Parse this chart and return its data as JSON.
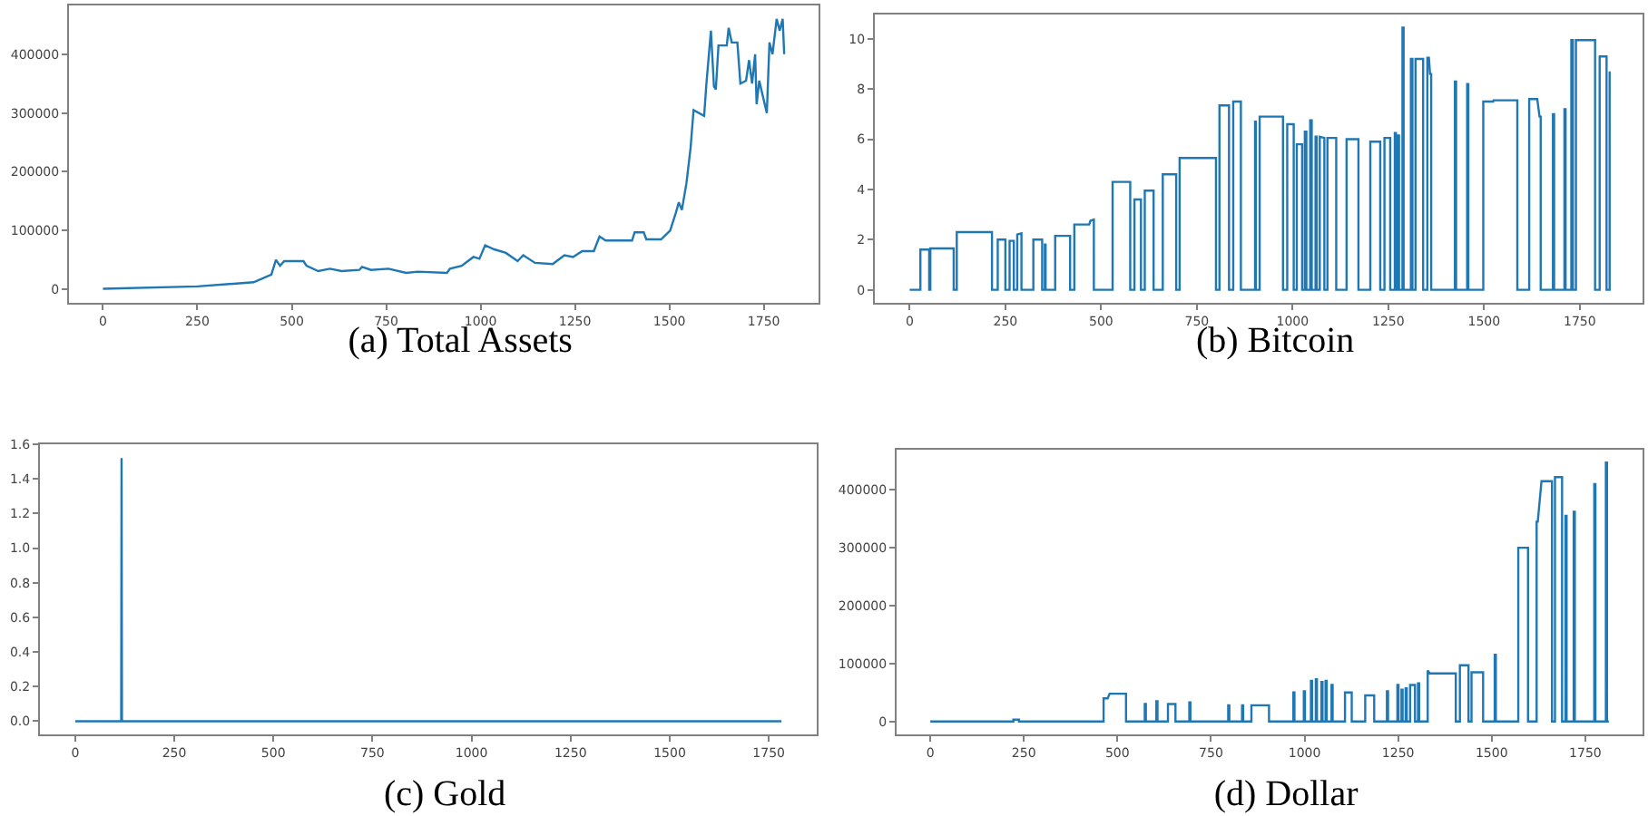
{
  "chart_data": [
    {
      "type": "line",
      "title": "(a) Total Assets",
      "grid": false,
      "legend": false,
      "xlim": [
        -90,
        1895
      ],
      "xticks": [
        0,
        250,
        500,
        750,
        1000,
        1250,
        1500,
        1750
      ],
      "ylim": [
        -23000,
        483000
      ],
      "yticks": [
        0,
        100000,
        200000,
        300000,
        400000
      ],
      "series": [
        {
          "color": "#1f77b4",
          "x": [
            0,
            250,
            399,
            446,
            458,
            469,
            480,
            531,
            539,
            570,
            601,
            632,
            679,
            686,
            710,
            756,
            803,
            834,
            911,
            919,
            950,
            981,
            997,
            1012,
            1036,
            1067,
            1098,
            1113,
            1144,
            1191,
            1222,
            1245,
            1269,
            1300,
            1315,
            1331,
            1401,
            1408,
            1432,
            1439,
            1478,
            1502,
            1517,
            1525,
            1533,
            1545,
            1556,
            1564,
            1592,
            1598,
            1610,
            1618,
            1623,
            1630,
            1652,
            1657,
            1665,
            1680,
            1688,
            1703,
            1711,
            1719,
            1727,
            1731,
            1738,
            1747,
            1758,
            1765,
            1773,
            1784,
            1792,
            1800,
            1804
          ],
          "values": [
            1000,
            5000,
            12000,
            25000,
            50000,
            40000,
            48000,
            48000,
            40000,
            31000,
            35000,
            31000,
            33000,
            38000,
            33000,
            35000,
            28000,
            30000,
            28000,
            35000,
            40000,
            55000,
            52000,
            75000,
            68000,
            62000,
            48000,
            58000,
            45000,
            43000,
            58000,
            55000,
            65000,
            65000,
            90000,
            83000,
            83000,
            97000,
            97000,
            85000,
            85000,
            100000,
            130000,
            148000,
            135000,
            180000,
            240000,
            305000,
            295000,
            350000,
            440000,
            345000,
            340000,
            415000,
            415000,
            445000,
            420000,
            420000,
            350000,
            355000,
            390000,
            350000,
            400000,
            315000,
            355000,
            330000,
            300000,
            420000,
            400000,
            460000,
            440000,
            460000,
            400000
          ]
        }
      ]
    },
    {
      "type": "line",
      "title": "(b) Bitcoin",
      "grid": false,
      "legend": false,
      "xlim": [
        -91,
        1914
      ],
      "xticks": [
        0,
        250,
        500,
        750,
        1000,
        1250,
        1500,
        1750
      ],
      "ylim": [
        -0.52,
        10.97
      ],
      "yticks": [
        0,
        2,
        4,
        6,
        8,
        10
      ],
      "series": [
        {
          "color": "#1f77b4",
          "x": [
            0,
            28,
            28,
            51,
            51,
            54,
            54,
            115,
            115,
            123,
            123,
            215,
            215,
            230,
            230,
            250,
            250,
            261,
            261,
            272,
            272,
            281,
            281,
            292,
            292,
            323,
            323,
            346,
            346,
            353,
            353,
            355,
            355,
            380,
            380,
            419,
            419,
            430,
            430,
            469,
            472,
            481,
            481,
            530,
            530,
            576,
            576,
            587,
            587,
            604,
            604,
            614,
            614,
            637,
            637,
            661,
            661,
            696,
            696,
            705,
            705,
            800,
            800,
            809,
            809,
            834,
            834,
            845,
            845,
            865,
            865,
            902,
            902,
            904,
            904,
            914,
            914,
            975,
            975,
            986,
            986,
            1003,
            1003,
            1011,
            1011,
            1025,
            1025,
            1032,
            1032,
            1036,
            1036,
            1046,
            1046,
            1050,
            1050,
            1060,
            1060,
            1063,
            1063,
            1071,
            1071,
            1083,
            1083,
            1091,
            1091,
            1114,
            1114,
            1141,
            1141,
            1172,
            1172,
            1203,
            1203,
            1229,
            1229,
            1240,
            1240,
            1255,
            1255,
            1267,
            1267,
            1270,
            1270,
            1275,
            1275,
            1278,
            1278,
            1287,
            1287,
            1290,
            1290,
            1309,
            1309,
            1313,
            1313,
            1321,
            1321,
            1341,
            1341,
            1352,
            1352,
            1356,
            1359,
            1362,
            1362,
            1424,
            1424,
            1427,
            1427,
            1456,
            1456,
            1459,
            1459,
            1498,
            1498,
            1524,
            1525,
            1587,
            1587,
            1618,
            1618,
            1639,
            1645,
            1648,
            1648,
            1680,
            1680,
            1683,
            1683,
            1710,
            1710,
            1713,
            1713,
            1728,
            1728,
            1732,
            1732,
            1740,
            1740,
            1790,
            1790,
            1802,
            1802,
            1820,
            1820,
            1828,
            1828
          ],
          "values": [
            0,
            0,
            1.6,
            1.6,
            0,
            0,
            1.65,
            1.65,
            0,
            0,
            2.3,
            2.3,
            0,
            0,
            2.0,
            2.0,
            0,
            0,
            1.95,
            1.95,
            0,
            0,
            2.2,
            2.25,
            0,
            0,
            2.0,
            2.0,
            0,
            0,
            1.8,
            1.8,
            0,
            0,
            2.15,
            2.15,
            0,
            0,
            2.6,
            2.6,
            2.75,
            2.8,
            0,
            0,
            4.3,
            4.3,
            0,
            0,
            3.6,
            3.6,
            0,
            0,
            3.95,
            3.95,
            0,
            0,
            4.6,
            4.6,
            0,
            0,
            5.25,
            5.25,
            0,
            0,
            7.35,
            7.35,
            0,
            0,
            7.5,
            7.5,
            0,
            0,
            6.7,
            6.7,
            0,
            0,
            6.9,
            6.9,
            0,
            0,
            6.6,
            6.6,
            0,
            0,
            5.8,
            5.8,
            0,
            0,
            6.3,
            6.3,
            0,
            0,
            6.75,
            6.75,
            0,
            0,
            6.1,
            6.1,
            0,
            0,
            6.1,
            6.05,
            0,
            0,
            6.05,
            6.05,
            0,
            0,
            6.0,
            6.0,
            0,
            0,
            5.9,
            5.9,
            0,
            0,
            6.05,
            6.05,
            0,
            0,
            6.25,
            6.25,
            0,
            0,
            6.15,
            6.15,
            0,
            0,
            10.45,
            10.45,
            0,
            0,
            9.2,
            9.2,
            0,
            0,
            9.2,
            9.2,
            0,
            0,
            9.25,
            9.25,
            8.6,
            8.6,
            0,
            0,
            8.3,
            8.3,
            0,
            0,
            8.2,
            8.2,
            0,
            0,
            7.5,
            7.5,
            7.55,
            7.55,
            0,
            0,
            7.6,
            7.6,
            6.9,
            6.9,
            0,
            0,
            7.0,
            7.0,
            0,
            0,
            7.2,
            7.2,
            0,
            0,
            9.95,
            9.95,
            0,
            0,
            9.95,
            9.95,
            0,
            0,
            9.3,
            9.3,
            0,
            0,
            8.7
          ]
        }
      ]
    },
    {
      "type": "line",
      "title": "(c) Gold",
      "grid": false,
      "legend": false,
      "xlim": [
        -89,
        1871
      ],
      "xticks": [
        0,
        250,
        500,
        750,
        1000,
        1250,
        1500,
        1750
      ],
      "ylim": [
        -0.076,
        1.6
      ],
      "yticks": [
        {
          "value": 0,
          "label": "0.0"
        },
        0.2,
        0.4,
        0.6,
        0.8,
        {
          "value": 1,
          "label": "1.0"
        },
        1.2,
        1.4,
        1.6
      ],
      "series": [
        {
          "color": "#1f77b4",
          "x": [
            0,
            116,
            117,
            118,
            1782
          ],
          "values": [
            0,
            0,
            1.52,
            0,
            0
          ]
        }
      ]
    },
    {
      "type": "line",
      "title": "(d) Dollar",
      "grid": false,
      "legend": false,
      "xlim": [
        -90,
        1903
      ],
      "xticks": [
        0,
        250,
        500,
        750,
        1000,
        1250,
        1500,
        1750
      ],
      "ylim": [
        -22350,
        469350
      ],
      "yticks": [
        0,
        100000,
        200000,
        300000,
        400000
      ],
      "series": [
        {
          "color": "#1f77b4",
          "x": [
            0,
            222,
            222,
            237,
            237,
            463,
            463,
            474,
            479,
            523,
            523,
            573,
            573,
            576,
            576,
            604,
            604,
            607,
            607,
            635,
            635,
            655,
            655,
            692,
            692,
            695,
            695,
            796,
            796,
            799,
            799,
            833,
            833,
            836,
            836,
            858,
            858,
            905,
            905,
            970,
            970,
            973,
            973,
            998,
            998,
            1001,
            1001,
            1017,
            1017,
            1020,
            1020,
            1030,
            1030,
            1033,
            1033,
            1045,
            1045,
            1048,
            1048,
            1056,
            1056,
            1059,
            1059,
            1072,
            1072,
            1075,
            1075,
            1108,
            1108,
            1126,
            1126,
            1162,
            1162,
            1186,
            1186,
            1220,
            1220,
            1223,
            1223,
            1248,
            1248,
            1251,
            1251,
            1259,
            1259,
            1262,
            1262,
            1270,
            1270,
            1273,
            1273,
            1282,
            1282,
            1295,
            1295,
            1303,
            1303,
            1306,
            1306,
            1329,
            1329,
            1335,
            1404,
            1404,
            1415,
            1415,
            1438,
            1438,
            1446,
            1446,
            1477,
            1477,
            1508,
            1508,
            1511,
            1511,
            1571,
            1571,
            1597,
            1597,
            1620,
            1620,
            1623,
            1633,
            1661,
            1661,
            1669,
            1669,
            1688,
            1688,
            1697,
            1697,
            1700,
            1700,
            1719,
            1719,
            1722,
            1722,
            1774,
            1774,
            1777,
            1777,
            1805,
            1805,
            1808,
            1808,
            1813
          ],
          "values": [
            0,
            0,
            3000,
            3000,
            0,
            0,
            40000,
            40000,
            48000,
            48000,
            0,
            0,
            30000,
            30000,
            0,
            0,
            35000,
            35000,
            0,
            0,
            30000,
            30000,
            0,
            0,
            33000,
            33000,
            0,
            0,
            28000,
            28000,
            0,
            0,
            28000,
            28000,
            0,
            0,
            28000,
            28000,
            0,
            0,
            50000,
            50000,
            0,
            0,
            52000,
            52000,
            0,
            0,
            70000,
            70000,
            0,
            0,
            73000,
            73000,
            0,
            0,
            68000,
            68000,
            0,
            0,
            70000,
            70000,
            0,
            0,
            63000,
            63000,
            0,
            0,
            50000,
            50000,
            0,
            0,
            45000,
            45000,
            0,
            0,
            52000,
            52000,
            0,
            0,
            63000,
            63000,
            0,
            0,
            55000,
            55000,
            0,
            0,
            57000,
            57000,
            0,
            0,
            63000,
            63000,
            0,
            0,
            66000,
            66000,
            0,
            0,
            88000,
            83000,
            83000,
            0,
            0,
            97000,
            97000,
            0,
            0,
            85000,
            85000,
            0,
            0,
            115000,
            115000,
            0,
            0,
            300000,
            300000,
            0,
            0,
            345000,
            345000,
            415000,
            415000,
            0,
            0,
            422000,
            422000,
            0,
            0,
            355000,
            355000,
            0,
            0,
            362000,
            362000,
            0,
            0,
            410000,
            410000,
            0,
            0,
            447000,
            447000,
            0,
            0
          ]
        }
      ]
    }
  ]
}
